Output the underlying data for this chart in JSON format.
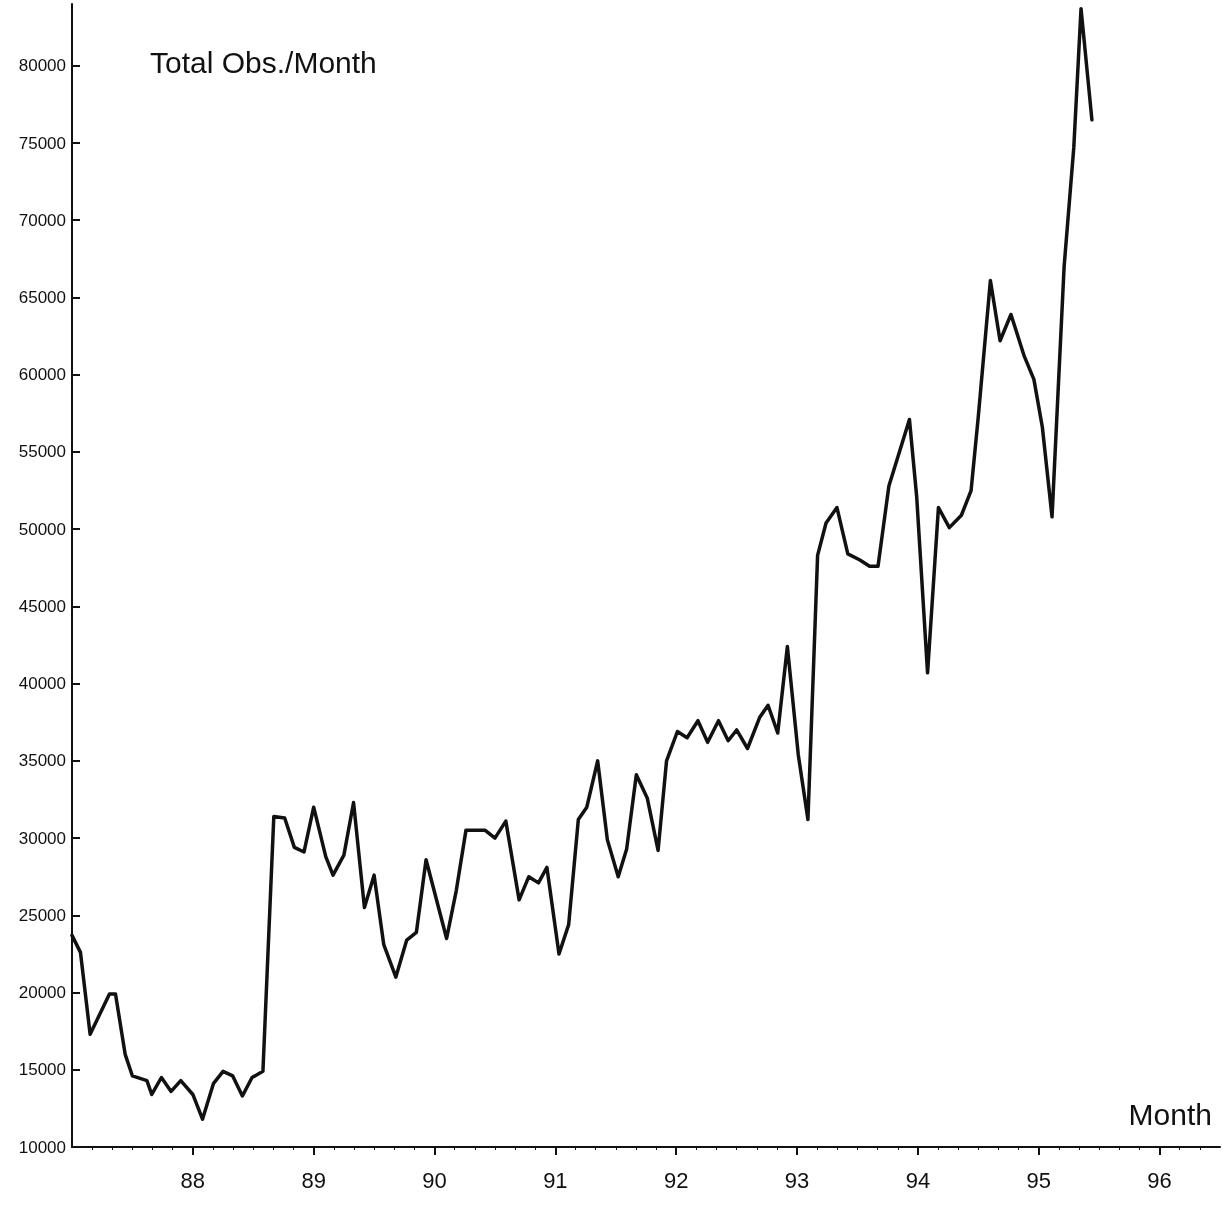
{
  "chart_data": {
    "type": "line",
    "title": "Total Obs./Month",
    "xlabel": "Month",
    "color": "#111111",
    "line_style": "solid",
    "marker": "none",
    "x": [
      87.0,
      87.07,
      87.15,
      87.31,
      87.36,
      87.44,
      87.5,
      87.62,
      87.66,
      87.74,
      87.82,
      87.9,
      88.0,
      88.08,
      88.17,
      88.25,
      88.33,
      88.41,
      88.49,
      88.58,
      88.67,
      88.76,
      88.84,
      88.92,
      89.0,
      89.1,
      89.16,
      89.25,
      89.33,
      89.42,
      89.5,
      89.58,
      89.68,
      89.77,
      89.85,
      89.93,
      90.1,
      90.18,
      90.26,
      90.42,
      90.5,
      90.59,
      90.7,
      90.78,
      90.86,
      90.93,
      91.03,
      91.11,
      91.19,
      91.26,
      91.35,
      91.43,
      91.52,
      91.59,
      91.67,
      91.76,
      91.85,
      91.92,
      92.01,
      92.09,
      92.18,
      92.26,
      92.35,
      92.43,
      92.5,
      92.59,
      92.69,
      92.76,
      92.84,
      92.92,
      93.01,
      93.09,
      93.17,
      93.24,
      93.33,
      93.42,
      93.52,
      93.6,
      93.67,
      93.76,
      93.93,
      93.99,
      94.08,
      94.17,
      94.26,
      94.36,
      94.44,
      94.5,
      94.6,
      94.68,
      94.77,
      94.88,
      94.96,
      95.03,
      95.11,
      95.21,
      95.29,
      95.35,
      95.44
    ],
    "values": [
      23700,
      22600,
      17300,
      19900,
      19900,
      16000,
      14600,
      14300,
      13400,
      14500,
      13600,
      14300,
      13400,
      11800,
      14100,
      14900,
      14600,
      13300,
      14500,
      14900,
      31400,
      31300,
      29400,
      29100,
      32000,
      28800,
      27600,
      28900,
      32300,
      25500,
      27600,
      23100,
      21000,
      23400,
      23900,
      28600,
      23500,
      26600,
      30500,
      30500,
      30000,
      31100,
      26000,
      27500,
      27100,
      28100,
      22500,
      24400,
      31200,
      32000,
      35000,
      29900,
      27500,
      29300,
      34100,
      32600,
      29200,
      35000,
      36900,
      36500,
      37600,
      36200,
      37600,
      36300,
      37000,
      35800,
      37800,
      38600,
      36800,
      42400,
      35400,
      31200,
      48300,
      50400,
      51400,
      48400,
      48000,
      47600,
      47600,
      52800,
      57100,
      52100,
      40700,
      51400,
      50100,
      50900,
      52500,
      57300,
      66100,
      62200,
      63900,
      61200,
      59700,
      56600,
      50800,
      67000,
      74700,
      83700,
      76500
    ],
    "xlim": [
      87,
      96.5
    ],
    "xticks": [
      88,
      89,
      90,
      91,
      92,
      93,
      94,
      95,
      96
    ],
    "ylim": [
      10000,
      84000
    ],
    "yticks": [
      10000,
      15000,
      20000,
      25000,
      30000,
      35000,
      40000,
      45000,
      50000,
      55000,
      60000,
      65000,
      70000,
      75000,
      80000
    ]
  }
}
